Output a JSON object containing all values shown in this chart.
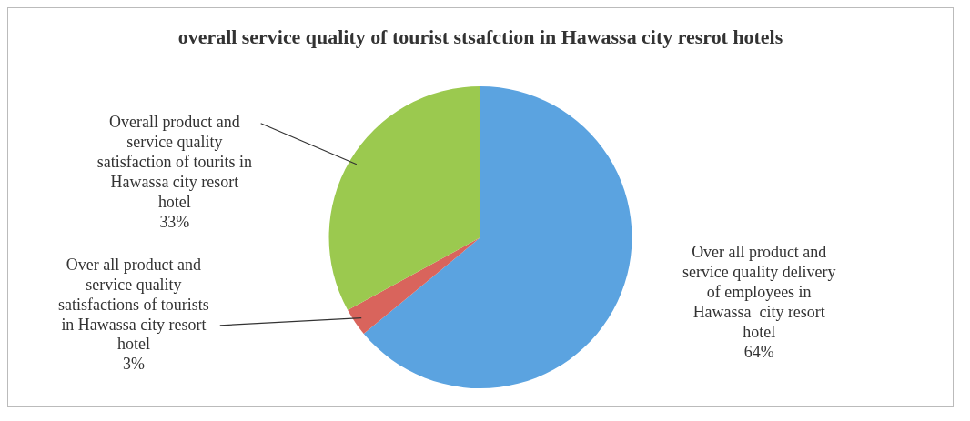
{
  "chart_data": {
    "type": "pie",
    "title": "overall service quality of tourist stsafction in Hawassa city resrot hotels",
    "categories": [
      "Over all product and service quality delivery of employees in Hawassa  city resort hotel",
      "Over all product and service quality satisfactions of tourists in Hawassa city resort hotel",
      "Overall product and service quality satisfaction of tourits in Hawassa city resort hotel"
    ],
    "values": [
      64,
      3,
      33
    ],
    "colors": [
      "#5ba3e0",
      "#d9645c",
      "#9bc94f"
    ],
    "value_labels": [
      "64%",
      "3%",
      "33%"
    ],
    "legend": false
  }
}
